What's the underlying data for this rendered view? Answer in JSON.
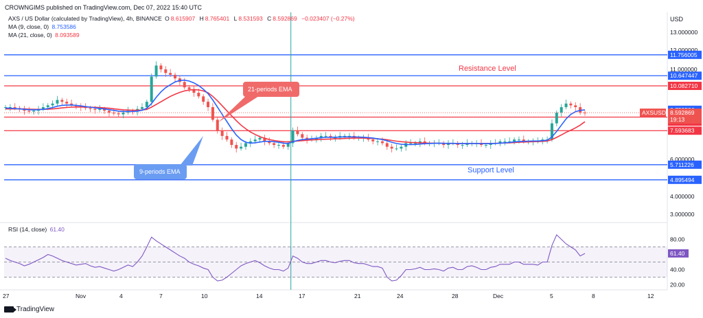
{
  "header": {
    "publisher": "CROWNGIMS published on TradingView.com, Dec 07, 2022 15:40 UTC",
    "currency": "USD"
  },
  "legend": {
    "symbol_line": "AXS / US Dollar (calculated by TradingView), 4h, BINANCE",
    "ohlc": {
      "o_label": "O",
      "o": "8.615907",
      "h_label": "H",
      "h": "8.765401",
      "l_label": "L",
      "l": "8.531593",
      "c_label": "C",
      "c": "8.592869",
      "change": "−0.023407 (−0.27%)"
    },
    "ma9": {
      "label": "MA (9, close, 0)",
      "value": "8.753586"
    },
    "ma21": {
      "label": "MA (21, close, 0)",
      "value": "8.093589"
    },
    "rsi": {
      "label": "RSI (14, close)",
      "value": "61.40"
    }
  },
  "annotations": {
    "resistance": "Resistance Level",
    "support": "Support Level",
    "ema21": "21-periods EMA",
    "ema9": "9-periods EMA"
  },
  "footer": {
    "brand": "TradingView"
  },
  "colors": {
    "blue_line": "#2962ff",
    "red_line": "#f23645",
    "ma9": "#2962ff",
    "ma21": "#f23645",
    "rsi": "#7e57c2",
    "up": "#26a69a",
    "down": "#ef5350",
    "callout_red": "#f06a6a",
    "callout_blue": "#6a9cf2"
  },
  "chart_data": [
    {
      "type": "candlestick",
      "title": "AXS / US Dollar, 4h, BINANCE",
      "y_axis_ticks": [
        "13.000000",
        "12.000000",
        "11.000000",
        "6.000000",
        "4.000000",
        "3.000000"
      ],
      "y_axis_tick_values": [
        13,
        12,
        11,
        6,
        4,
        3
      ],
      "ylim": [
        2.5,
        13.6
      ],
      "x_axis_ticks": [
        "27",
        "Nov",
        "4",
        "7",
        "10",
        "14",
        "17",
        "21",
        "24",
        "28",
        "Dec",
        "5",
        "8",
        "12"
      ],
      "horizontal_levels": [
        {
          "label": "11.756005",
          "value": 11.756005,
          "color": "blue"
        },
        {
          "label": "10.647447",
          "value": 10.647447,
          "color": "blue"
        },
        {
          "label": "10.082710",
          "value": 10.08271,
          "color": "red"
        },
        {
          "label": "8.346666",
          "value": 8.346666,
          "color": "red"
        },
        {
          "label": "7.593683",
          "value": 7.593683,
          "color": "red"
        },
        {
          "label": "5.711226",
          "value": 5.711226,
          "color": "blue"
        },
        {
          "label": "4.895494",
          "value": 4.895494,
          "color": "blue"
        }
      ],
      "price_labels": [
        {
          "label": "8.753586",
          "value": 8.753586,
          "kind": "ma9"
        },
        {
          "label": "8.592869",
          "value": 8.592869,
          "kind": "last",
          "ticker": "AXSUSD",
          "countdown": "19:13"
        },
        {
          "label": "8.093589",
          "value": 8.093589,
          "kind": "ma21"
        }
      ],
      "close_series": [
        8.9,
        8.9,
        8.85,
        8.8,
        8.7,
        8.65,
        8.7,
        8.8,
        8.9,
        9.0,
        9.1,
        9.3,
        9.2,
        9.1,
        9.0,
        8.95,
        8.9,
        8.85,
        8.8,
        8.75,
        8.8,
        8.7,
        8.6,
        8.55,
        8.5,
        8.6,
        8.7,
        8.65,
        8.8,
        8.9,
        9.2,
        10.6,
        11.2,
        11.0,
        10.8,
        10.7,
        10.5,
        10.3,
        10.0,
        9.9,
        9.7,
        9.5,
        9.2,
        8.9,
        8.2,
        7.6,
        7.3,
        7.1,
        6.8,
        6.6,
        6.7,
        6.9,
        7.0,
        7.1,
        7.2,
        7.0,
        6.9,
        6.8,
        6.8,
        6.7,
        6.9,
        7.6,
        7.4,
        7.2,
        7.1,
        7.1,
        7.2,
        7.3,
        7.3,
        7.2,
        7.2,
        7.3,
        7.3,
        7.3,
        7.2,
        7.2,
        7.2,
        7.1,
        7.0,
        7.0,
        6.9,
        6.7,
        6.6,
        6.6,
        6.7,
        6.9,
        6.9,
        6.9,
        7.0,
        6.9,
        6.9,
        6.9,
        6.9,
        6.8,
        6.9,
        6.9,
        6.8,
        6.8,
        6.9,
        6.9,
        6.9,
        6.8,
        6.8,
        6.9,
        6.9,
        7.0,
        7.0,
        7.0,
        7.1,
        7.1,
        7.0,
        7.0,
        7.0,
        7.0,
        7.1,
        7.1,
        8.0,
        8.6,
        8.9,
        9.1,
        9.0,
        8.9,
        8.6,
        8.59
      ],
      "ma9_series": [
        8.85,
        8.84,
        8.82,
        8.8,
        8.78,
        8.76,
        8.75,
        8.76,
        8.78,
        8.82,
        8.88,
        8.95,
        9.0,
        9.02,
        9.02,
        9.0,
        8.97,
        8.93,
        8.9,
        8.86,
        8.83,
        8.8,
        8.76,
        8.72,
        8.68,
        8.66,
        8.66,
        8.66,
        8.68,
        8.73,
        8.84,
        9.1,
        9.45,
        9.75,
        9.98,
        10.15,
        10.3,
        10.38,
        10.4,
        10.35,
        10.25,
        10.1,
        9.9,
        9.65,
        9.3,
        8.9,
        8.5,
        8.1,
        7.7,
        7.35,
        7.1,
        6.95,
        6.9,
        6.92,
        6.96,
        7.0,
        7.0,
        6.98,
        6.95,
        6.9,
        6.88,
        6.98,
        7.05,
        7.1,
        7.12,
        7.15,
        7.17,
        7.2,
        7.22,
        7.23,
        7.23,
        7.24,
        7.25,
        7.25,
        7.25,
        7.24,
        7.23,
        7.21,
        7.18,
        7.14,
        7.1,
        7.03,
        6.95,
        6.88,
        6.84,
        6.82,
        6.82,
        6.83,
        6.85,
        6.87,
        6.88,
        6.89,
        6.9,
        6.89,
        6.89,
        6.89,
        6.88,
        6.88,
        6.88,
        6.88,
        6.88,
        6.87,
        6.87,
        6.88,
        6.88,
        6.9,
        6.92,
        6.94,
        6.97,
        6.99,
        7.0,
        7.01,
        7.02,
        7.02,
        7.04,
        7.06,
        7.25,
        7.55,
        7.9,
        8.25,
        8.5,
        8.65,
        8.72,
        8.75
      ],
      "ma21_series": [
        8.8,
        8.8,
        8.8,
        8.8,
        8.8,
        8.79,
        8.78,
        8.78,
        8.78,
        8.79,
        8.8,
        8.83,
        8.86,
        8.88,
        8.9,
        8.91,
        8.91,
        8.9,
        8.9,
        8.89,
        8.88,
        8.86,
        8.84,
        8.81,
        8.78,
        8.75,
        8.74,
        8.73,
        8.73,
        8.74,
        8.78,
        8.9,
        9.05,
        9.2,
        9.35,
        9.5,
        9.62,
        9.72,
        9.8,
        9.85,
        9.87,
        9.86,
        9.8,
        9.7,
        9.5,
        9.25,
        8.98,
        8.7,
        8.42,
        8.15,
        7.9,
        7.7,
        7.52,
        7.38,
        7.26,
        7.17,
        7.1,
        7.05,
        7.01,
        6.98,
        6.97,
        7.0,
        7.02,
        7.04,
        7.06,
        7.08,
        7.09,
        7.11,
        7.12,
        7.13,
        7.14,
        7.15,
        7.16,
        7.17,
        7.18,
        7.18,
        7.18,
        7.17,
        7.16,
        7.14,
        7.12,
        7.09,
        7.05,
        7.01,
        6.98,
        6.96,
        6.94,
        6.93,
        6.92,
        6.91,
        6.9,
        6.9,
        6.89,
        6.89,
        6.88,
        6.88,
        6.88,
        6.88,
        6.88,
        6.88,
        6.88,
        6.88,
        6.88,
        6.88,
        6.89,
        6.9,
        6.91,
        6.92,
        6.93,
        6.95,
        6.96,
        6.97,
        6.98,
        6.99,
        7.0,
        7.02,
        7.1,
        7.22,
        7.36,
        7.5,
        7.62,
        7.75,
        7.9,
        8.09
      ]
    },
    {
      "type": "line",
      "title": "RSI (14, close)",
      "y_axis_ticks": [
        "80.00",
        "40.00",
        "20.00"
      ],
      "y_axis_tick_values": [
        80,
        40,
        20
      ],
      "band": [
        30,
        70
      ],
      "ylim": [
        15,
        95
      ],
      "last_value": 61.4,
      "values": [
        55,
        52,
        50,
        48,
        45,
        47,
        50,
        53,
        56,
        60,
        58,
        55,
        52,
        50,
        48,
        46,
        47,
        48,
        45,
        43,
        44,
        42,
        40,
        38,
        40,
        43,
        46,
        44,
        50,
        58,
        70,
        83,
        78,
        74,
        70,
        66,
        62,
        58,
        55,
        50,
        47,
        45,
        42,
        40,
        30,
        25,
        26,
        30,
        35,
        40,
        45,
        48,
        50,
        52,
        49,
        45,
        42,
        40,
        40,
        38,
        42,
        58,
        55,
        50,
        48,
        48,
        50,
        52,
        52,
        50,
        49,
        51,
        52,
        52,
        49,
        48,
        48,
        46,
        44,
        44,
        42,
        30,
        25,
        26,
        32,
        40,
        40,
        41,
        43,
        40,
        40,
        41,
        40,
        38,
        42,
        43,
        40,
        40,
        44,
        45,
        43,
        40,
        40,
        43,
        44,
        47,
        47,
        47,
        50,
        50,
        47,
        47,
        47,
        46,
        50,
        50,
        72,
        86,
        80,
        74,
        70,
        66,
        58,
        61.4
      ]
    }
  ]
}
